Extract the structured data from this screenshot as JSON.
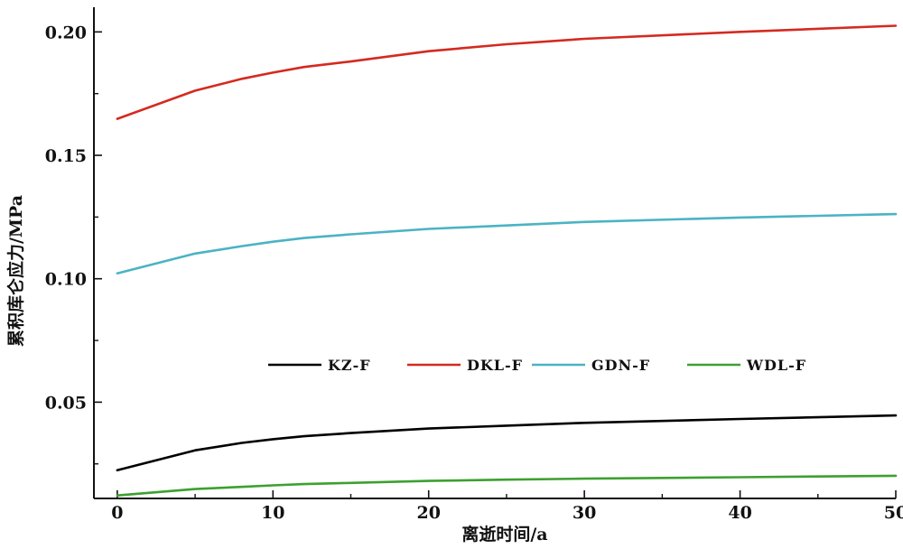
{
  "chart_data": {
    "type": "line",
    "xlabel": "离逝时间/a",
    "ylabel": "累积库仑应力/MPa",
    "xlim": [
      -1.5,
      50
    ],
    "ylim": [
      0.011,
      0.21
    ],
    "xticks": [
      0,
      10,
      20,
      30,
      40,
      50
    ],
    "xtick_labels": [
      "0",
      "10",
      "20",
      "30",
      "40",
      "50"
    ],
    "yticks": [
      0.05,
      0.1,
      0.15,
      0.2
    ],
    "ytick_labels": [
      "0.05",
      "0.10",
      "0.15",
      "0.20"
    ],
    "grid": false,
    "legend_position": "center, single row",
    "x": [
      0,
      5,
      8,
      10,
      12,
      15,
      20,
      25,
      30,
      40,
      50
    ],
    "series": [
      {
        "name": "KZ-F",
        "color": "#000000",
        "values": [
          0.0224,
          0.0305,
          0.0335,
          0.035,
          0.0362,
          0.0375,
          0.0393,
          0.0405,
          0.0416,
          0.0432,
          0.0446
        ]
      },
      {
        "name": "DKL-F",
        "color": "#d42a20",
        "values": [
          0.1648,
          0.1762,
          0.181,
          0.1835,
          0.1858,
          0.188,
          0.1922,
          0.195,
          0.1972,
          0.2,
          0.2025
        ]
      },
      {
        "name": "GDN-F",
        "color": "#4bb3c4",
        "values": [
          0.1022,
          0.1102,
          0.1132,
          0.115,
          0.1165,
          0.118,
          0.1202,
          0.1216,
          0.123,
          0.1248,
          0.1262
        ]
      },
      {
        "name": "WDL-F",
        "color": "#3da030",
        "values": [
          0.0122,
          0.0148,
          0.0157,
          0.0163,
          0.0168,
          0.0173,
          0.0181,
          0.0186,
          0.019,
          0.0196,
          0.0202
        ]
      }
    ]
  }
}
